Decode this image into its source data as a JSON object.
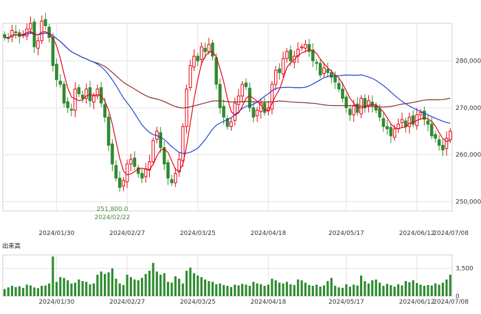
{
  "chart_data": [
    {
      "type": "candlestick",
      "title": "",
      "xlabel": "",
      "ylabel": "",
      "ylim": [
        248000,
        288000
      ],
      "y_ticks": [
        250000,
        260000,
        270000,
        280000
      ],
      "y_tick_labels": [
        "250,000",
        "260,000",
        "270,000",
        "280,000"
      ],
      "x_tick_labels": [
        "2024/01/30",
        "2024/02/27",
        "2024/03/25",
        "2024/04/18",
        "2024/05/17",
        "2024/06/12",
        "2024/07/08"
      ],
      "x_tick_index": [
        14,
        33,
        52,
        71,
        92,
        111,
        130
      ],
      "grid": true,
      "up_color": "#e60012",
      "down_color": "#2e8b2e",
      "ma_short_color": "#e60012",
      "ma_mid_color": "#1f3fd6",
      "ma_long_color": "#8b2a2a",
      "annotation": {
        "price_label": "251,800.0",
        "date_label": "2024/02/22",
        "index": 29,
        "price": 251800,
        "color": "#4a8a3a"
      },
      "closes": [
        285000,
        284800,
        286500,
        286000,
        285200,
        285600,
        286800,
        288000,
        283000,
        284300,
        288500,
        287500,
        285000,
        279000,
        276000,
        275000,
        271000,
        270000,
        269500,
        274000,
        273000,
        272000,
        274000,
        271500,
        272500,
        274000,
        271000,
        268000,
        262000,
        258000,
        255000,
        253000,
        254500,
        258000,
        259000,
        257500,
        256000,
        255000,
        257000,
        258500,
        263000,
        265000,
        261500,
        258000,
        255000,
        254000,
        256000,
        259000,
        266000,
        274000,
        279000,
        281000,
        280000,
        283000,
        282000,
        283500,
        281000,
        275000,
        270000,
        268000,
        266000,
        267000,
        271000,
        272500,
        275000,
        274500,
        270000,
        268000,
        269500,
        271000,
        269000,
        270000,
        275000,
        278000,
        277500,
        280500,
        282000,
        280000,
        281000,
        282500,
        283000,
        283500,
        282000,
        280000,
        279500,
        277000,
        278500,
        277500,
        276500,
        275500,
        274000,
        272000,
        270000,
        268500,
        270500,
        269000,
        272000,
        270000,
        271500,
        270500,
        269500,
        268000,
        266000,
        265500,
        264000,
        265500,
        266500,
        267500,
        266000,
        268000,
        266500,
        268500,
        269000,
        267500,
        266500,
        264000,
        263500,
        262000,
        261000,
        263500,
        265000
      ],
      "volume": {
        "label": "出来高",
        "ylim": [
          0,
          5200
        ],
        "y_ticks": [
          0,
          3500
        ],
        "y_tick_labels": [
          "0",
          "3,500"
        ],
        "values": [
          900,
          1100,
          1300,
          1150,
          1250,
          1050,
          1450,
          1350,
          1100,
          1000,
          1300,
          1350,
          1600,
          5000,
          1800,
          2400,
          2300,
          2000,
          1600,
          1700,
          2100,
          1900,
          1800,
          1500,
          1600,
          2700,
          3100,
          2800,
          3000,
          3500,
          2200,
          1600,
          1400,
          2700,
          2400,
          2100,
          2000,
          2300,
          2800,
          3200,
          4200,
          3100,
          2700,
          2900,
          1800,
          1700,
          2500,
          2200,
          1600,
          3200,
          3600,
          2900,
          2600,
          2400,
          2100,
          1900,
          1800,
          1500,
          1600,
          1400,
          1300,
          1150,
          1450,
          1350,
          1550,
          1450,
          1300,
          1800,
          1600,
          1500,
          1300,
          1450,
          2200,
          2000,
          1700,
          1600,
          1800,
          1500,
          1400,
          2100,
          2000,
          1700,
          1400,
          1300,
          1450,
          1200,
          1350,
          1900,
          2300,
          1300,
          1100,
          1050,
          1500,
          1200,
          1450,
          1350,
          2600,
          1900,
          1600,
          2000,
          2100,
          1700,
          1300,
          1550,
          1400,
          1200,
          1500,
          1350,
          1900,
          1750,
          2000,
          1650,
          1450,
          1300,
          1400,
          1350,
          1600,
          1450,
          1700,
          2100,
          2700
        ]
      }
    }
  ]
}
